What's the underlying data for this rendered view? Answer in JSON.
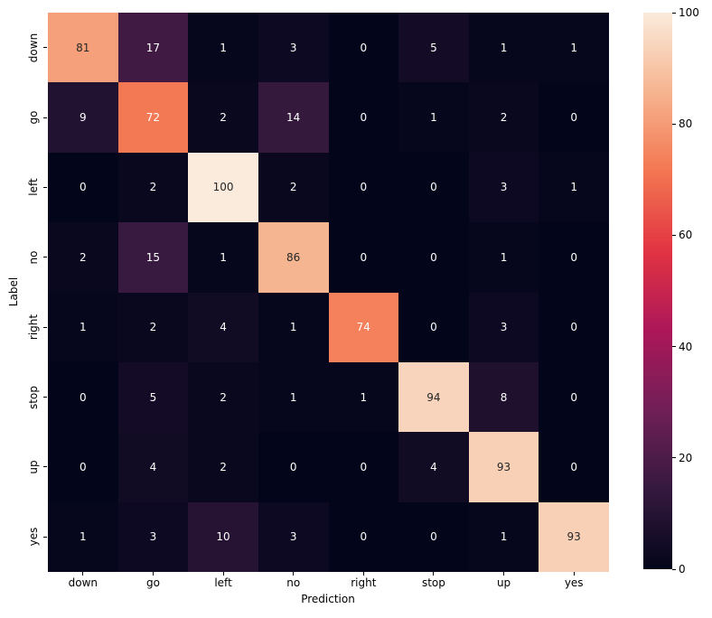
{
  "figure": {
    "background": "#ffffff"
  },
  "chart_data": {
    "type": "heatmap",
    "title": "",
    "xlabel": "Prediction",
    "ylabel": "Label",
    "x_categories": [
      "down",
      "go",
      "left",
      "no",
      "right",
      "stop",
      "up",
      "yes"
    ],
    "y_categories": [
      "down",
      "go",
      "left",
      "no",
      "right",
      "stop",
      "up",
      "yes"
    ],
    "values": [
      [
        81,
        17,
        1,
        3,
        0,
        5,
        1,
        1
      ],
      [
        9,
        72,
        2,
        14,
        0,
        1,
        2,
        0
      ],
      [
        0,
        2,
        100,
        2,
        0,
        0,
        3,
        1
      ],
      [
        2,
        15,
        1,
        86,
        0,
        0,
        1,
        0
      ],
      [
        1,
        2,
        4,
        1,
        74,
        0,
        3,
        0
      ],
      [
        0,
        5,
        2,
        1,
        1,
        94,
        8,
        0
      ],
      [
        0,
        4,
        2,
        0,
        0,
        4,
        93,
        0
      ],
      [
        1,
        3,
        10,
        3,
        0,
        0,
        1,
        93
      ]
    ],
    "vmin": 0,
    "vmax": 100,
    "annotations": true,
    "grid": false,
    "legend_position": "right-colorbar",
    "colorbar": {
      "ticks": [
        0,
        20,
        40,
        60,
        80,
        100
      ],
      "colormap_name": "rocket",
      "colormap_stops": [
        {
          "t": 0.0,
          "color": "#03051A"
        },
        {
          "t": 0.143,
          "color": "#35193E"
        },
        {
          "t": 0.286,
          "color": "#701F57"
        },
        {
          "t": 0.429,
          "color": "#AD1759"
        },
        {
          "t": 0.571,
          "color": "#E13342"
        },
        {
          "t": 0.714,
          "color": "#F37651"
        },
        {
          "t": 0.857,
          "color": "#F6B48F"
        },
        {
          "t": 1.0,
          "color": "#FAEBDC"
        }
      ]
    },
    "annotation_colors": {
      "on_dark": "#FFFFFF",
      "on_light": "#262626"
    },
    "tick_color": "#000000",
    "text_color": "#000000"
  }
}
